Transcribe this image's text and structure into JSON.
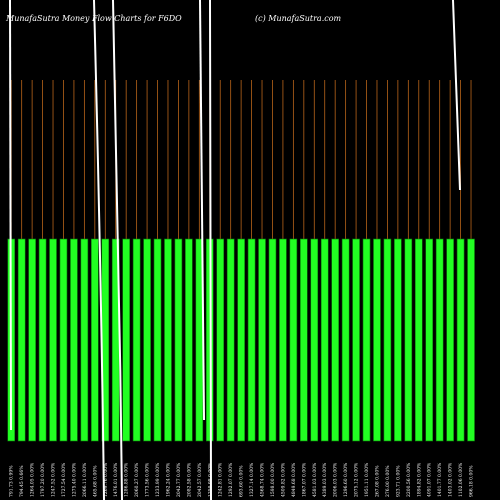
{
  "header": {
    "left": "MunafaSutra  Money Flow  Charts for F6DO",
    "right": "(c) MunafaSutra.com"
  },
  "colors": {
    "background": "#000000",
    "bar_fill": "#22ff22",
    "bar_edge": "#0a7a0a",
    "grid": "#b8641a",
    "line": "#ffffff"
  },
  "chart_data": {
    "type": "bar",
    "title": "MunafaSutra  Money Flow  Charts for F6DO",
    "grid": true,
    "categories": [
      "791.73 0.99%",
      "794.45 0.66%",
      "1264.05 0.00%",
      "1797.20 0.00%",
      "1247.52 0.00%",
      "1727.54 0.00%",
      "1275.40 0.00%",
      "2066.11 0.00%",
      "465.68 0.00%",
      "1269.76 0.00%",
      "1476.01 0.00%",
      "1286.88 0.00%",
      "2060.27 0.00%",
      "1773.56 0.00%",
      "1233.99 0.00%",
      "1962.24 0.00%",
      "2042.77 0.00%",
      "2082.58 0.00%",
      "2042.57 0.00%",
      "1259.98 0.00%",
      "1242.81 0.00%",
      "1292.07 0.00%",
      "693.60 0.00%",
      "1327.14 0.00%",
      "4568.74 0.00%",
      "1598.00 0.00%",
      "4509.82 0.00%",
      "4849.68 0.00%",
      "1867.07 0.00%",
      "4581.03 0.00%",
      "4389.03 0.00%",
      "2006.03 0.00%",
      "1296.60 0.00%",
      "2075.12 0.00%",
      "1951.11 0.00%",
      "267.08 0.00%",
      "276.00 0.00%",
      "923.71 0.00%",
      "2200.56 0.00%",
      "1894.82 0.00%",
      "4091.07 0.00%",
      "1401.77 0.00%",
      "1403.02 0.00%",
      "1102.06 0.00%",
      "966.18 0.00%"
    ],
    "series": [
      {
        "name": "",
        "values": [
          100,
          100,
          100,
          100,
          100,
          100,
          100,
          100,
          100,
          100,
          100,
          100,
          100,
          100,
          100,
          100,
          100,
          100,
          100,
          100,
          100,
          100,
          100,
          100,
          100,
          100,
          100,
          100,
          100,
          100,
          100,
          100,
          100,
          100,
          100,
          100,
          100,
          100,
          100,
          100,
          100,
          100,
          100,
          100,
          100
        ]
      }
    ],
    "ylim": [
      0,
      100
    ]
  }
}
